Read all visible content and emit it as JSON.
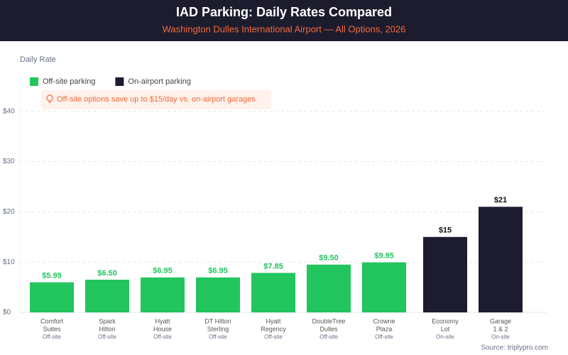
{
  "chart_data": {
    "type": "bar",
    "title": "IAD Parking: Daily Rates Compared",
    "subtitle": "Washington Dulles International Airport — All Options, 2026",
    "y_label": "Daily Rate",
    "annotation": "Off-site options save up to $15/day vs. on-airport garages",
    "source": "Source: triplypro.com",
    "categories": [
      [
        "Comfort",
        "Suites"
      ],
      [
        "Spark",
        "Hilton"
      ],
      [
        "Hyatt",
        "House"
      ],
      [
        "DT Hilton",
        "Sterling"
      ],
      [
        "Hyatt",
        "Regency"
      ],
      [
        "DoubleTree",
        "Dulles"
      ],
      [
        "Crowne",
        "Plaza"
      ],
      [
        "Economy",
        "Lot"
      ],
      [
        "Garage",
        "1 & 2"
      ]
    ],
    "category_notes": [
      "Off-site",
      "Off-site",
      "Off-site",
      "Off-site",
      "Off-site",
      "Off-site",
      "Off-site",
      "On-site",
      "On-site"
    ],
    "series": [
      {
        "name": "Off-site parking",
        "color": "#22c55e",
        "label_color": "#22c55e",
        "values": [
          5.99,
          6.5,
          6.95,
          6.95,
          7.85,
          9.5,
          9.95,
          null,
          null
        ],
        "value_labels": [
          "$5.99",
          "$6.50",
          "$6.95",
          "$6.95",
          "$7.85",
          "$9.50",
          "$9.95",
          null,
          null
        ]
      },
      {
        "name": "On-airport parking",
        "color": "#1c1c2e",
        "label_color": "#111111",
        "values": [
          null,
          null,
          null,
          null,
          null,
          null,
          null,
          15,
          21
        ],
        "value_labels": [
          null,
          null,
          null,
          null,
          null,
          null,
          null,
          "$15",
          "$21"
        ]
      }
    ],
    "ylim": [
      0,
      48
    ],
    "yticks": [
      {
        "value": 0,
        "label": "$0"
      },
      {
        "value": 10,
        "label": "$10"
      },
      {
        "value": 20,
        "label": "$20"
      },
      {
        "value": 30,
        "label": "$30"
      },
      {
        "value": 40,
        "label": "$40"
      }
    ],
    "grid": true
  }
}
